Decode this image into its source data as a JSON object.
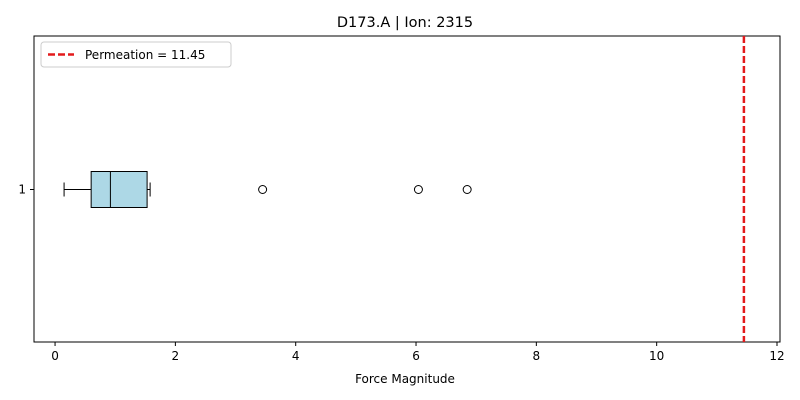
{
  "chart_data": {
    "type": "boxplot",
    "orientation": "horizontal",
    "title": "D173.A | Ion: 2315",
    "xlabel": "Force Magnitude",
    "ylabel": "",
    "xlim": [
      -0.35,
      12.05
    ],
    "xticks": [
      0,
      2,
      4,
      6,
      8,
      10,
      12
    ],
    "yticks": [
      "1"
    ],
    "grid": false,
    "box": {
      "label": "1",
      "whisker_low": 0.15,
      "q1": 0.6,
      "median": 0.92,
      "q3": 1.53,
      "whisker_high": 1.58,
      "outliers": [
        3.45,
        6.04,
        6.85
      ],
      "fill_color": "#add8e6"
    },
    "reference_line": {
      "label": "Permeation = 11.45",
      "value": 11.45,
      "color": "#e31a1c",
      "style": "dashed"
    },
    "legend_position": "upper-left"
  }
}
